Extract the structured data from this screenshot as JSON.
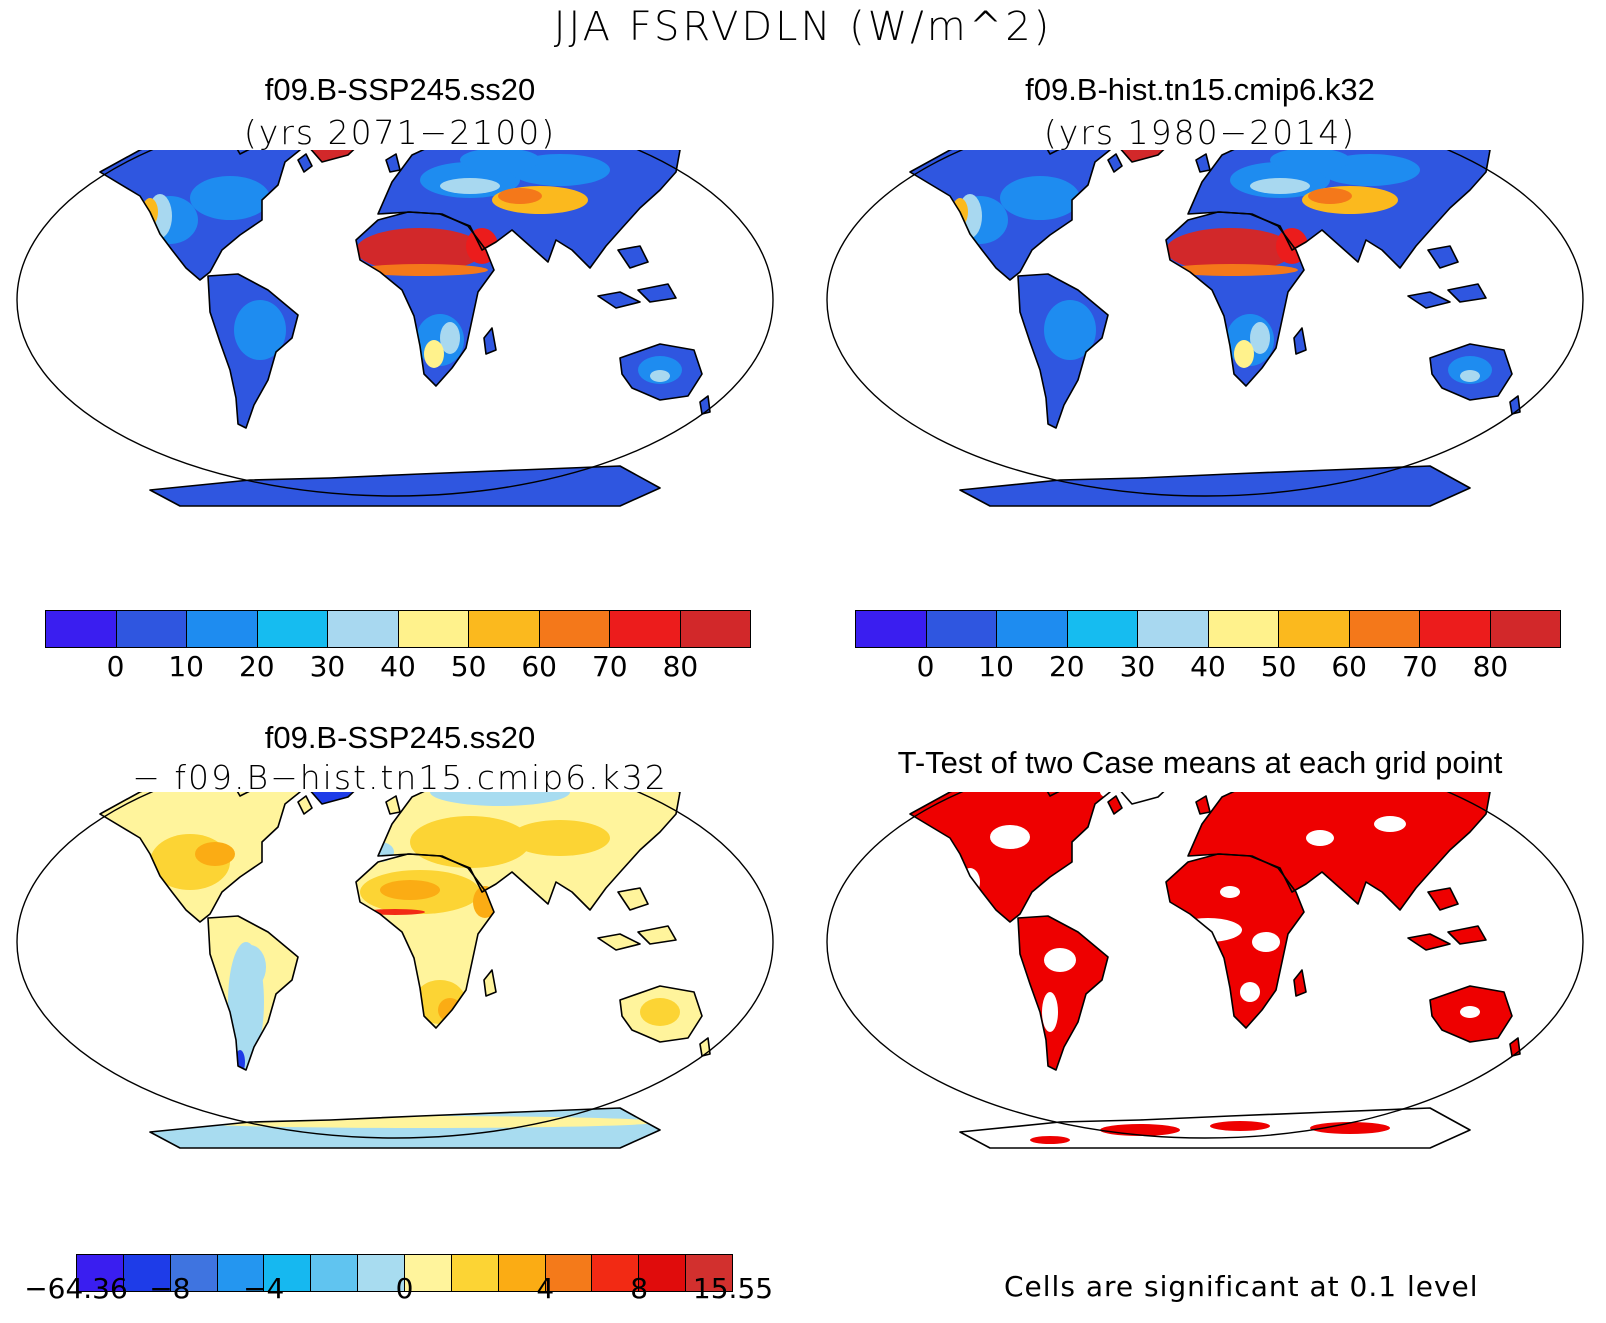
{
  "figure": {
    "main_title": "JJA FSRVDLN (W/m^2)"
  },
  "panels": [
    {
      "title_line1": "f09.B-SSP245.ss20",
      "title_line2": "(yrs 2071−2100)",
      "field": "absolute"
    },
    {
      "title_line1": "f09.B-hist.tn15.cmip6.k32",
      "title_line2": "(yrs 1980−2014)",
      "field": "absolute"
    },
    {
      "title_line1": "f09.B-SSP245.ss20",
      "title_line2": "− f09.B−hist.tn15.cmip6.k32",
      "field": "difference"
    },
    {
      "title_line1": "T-Test of two Case means at each grid point",
      "title_line2": "",
      "field": "significance"
    }
  ],
  "colorbar_absolute": {
    "colors": [
      "#3a1ef0",
      "#2f56e0",
      "#1e8cf0",
      "#16bcf0",
      "#a8d8f0",
      "#fff28c",
      "#fbb91e",
      "#f4781a",
      "#ec1c1c",
      "#d2282a"
    ],
    "labels": [
      "0",
      "10",
      "20",
      "30",
      "40",
      "50",
      "60",
      "70",
      "80"
    ]
  },
  "colorbar_difference": {
    "colors": [
      "#3a1ef0",
      "#1e3ce8",
      "#3f74e0",
      "#2496f0",
      "#16b8f0",
      "#60c4f0",
      "#a8dcf0",
      "#fff49c",
      "#fcd434",
      "#fbac14",
      "#f47a1a",
      "#f22a14",
      "#e00c0c",
      "#d2302e"
    ],
    "labels": [
      "−64.36",
      "−8",
      "−4",
      "0",
      "4",
      "8",
      "15.55"
    ]
  },
  "significance_note": "Cells are significant at 0.1 level",
  "colors": {
    "significant": "#ee0000",
    "land_base_absolute": "#2f56e0",
    "desert_absolute": "#d2282a",
    "land_base_difference": "#fff49c"
  }
}
